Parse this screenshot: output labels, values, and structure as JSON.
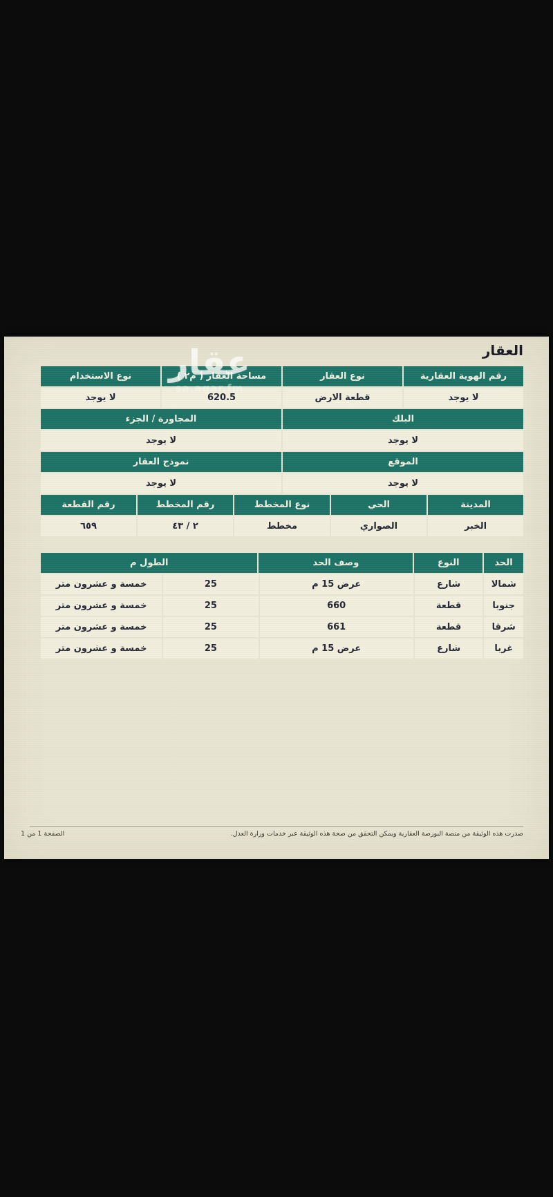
{
  "page": {
    "title": "العقار",
    "watermark": {
      "text": "عقار",
      "subtext": "sa.aqar.fm"
    },
    "footer": {
      "note": "صدرت هذه الوثيقة من منصة البورصة العقارية ويمكن التحقق من صحة هذه الوثيقة عبر خدمات وزارة العدل.",
      "page_indicator": "الصفحة 1 من 1"
    }
  },
  "colors": {
    "header_teal": "#1c7366",
    "document_bg": "#e9e5d2",
    "row_bg": "#f3efde",
    "letterbox_black": "#0c0c0c",
    "header_text": "#f2efe1",
    "body_text": "#242734"
  },
  "property_table": {
    "row1_headers": [
      "رقم الهوية العقارية",
      "نوع العقار",
      "مساحة العقار ( م٢ )",
      "نوع الاستخدام"
    ],
    "row1_values": [
      "لا يوجد",
      "قطعة الارض",
      "620.5",
      "لا يوجد"
    ],
    "row2_headers": [
      "البلك",
      "المجاورة / الجزء"
    ],
    "row2_values": [
      "لا يوجد",
      "لا يوجد"
    ],
    "row3_headers": [
      "الموقع",
      "نموذج العقار"
    ],
    "row3_values": [
      "لا يوجد",
      "لا يوجد"
    ],
    "row4_headers": [
      "المدينة",
      "الحي",
      "نوع المخطط",
      "رقم المخطط",
      "رقم القطعة"
    ],
    "row4_values": [
      "الخبر",
      "الصواري",
      "مخطط",
      "٢ / ٤٣",
      "٦٥٩"
    ]
  },
  "borders_table": {
    "headers": [
      "الحد",
      "النوع",
      "وصف الحد",
      "الطول م"
    ],
    "rows": [
      {
        "border": "شمالا",
        "type": "شارع",
        "description": "عرض 15 م",
        "length_num": "25",
        "length_text": "خمسة و عشرون متر"
      },
      {
        "border": "جنوبا",
        "type": "قطعة",
        "description": "660",
        "length_num": "25",
        "length_text": "خمسة و عشرون متر"
      },
      {
        "border": "شرقا",
        "type": "قطعة",
        "description": "661",
        "length_num": "25",
        "length_text": "خمسة و عشرون متر"
      },
      {
        "border": "غربا",
        "type": "شارع",
        "description": "عرض 15 م",
        "length_num": "25",
        "length_text": "خمسة و عشرون متر"
      }
    ]
  }
}
